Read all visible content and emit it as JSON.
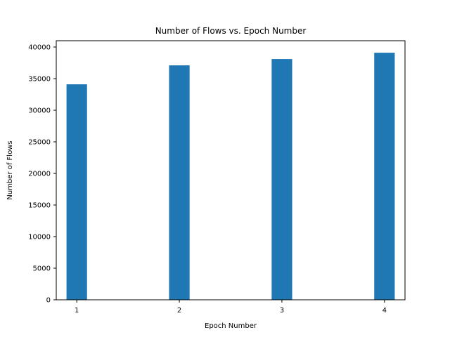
{
  "chart_data": {
    "type": "bar",
    "title": "Number of Flows vs. Epoch Number",
    "xlabel": "Epoch Number",
    "ylabel": "Number of Flows",
    "categories": [
      "1",
      "2",
      "3",
      "4"
    ],
    "values": [
      34100,
      37100,
      38100,
      39100
    ],
    "ylim": [
      0,
      41000
    ],
    "yticks": [
      0,
      5000,
      10000,
      15000,
      20000,
      25000,
      30000,
      35000,
      40000
    ],
    "grid": false,
    "bar_color": "#1f77b4"
  }
}
